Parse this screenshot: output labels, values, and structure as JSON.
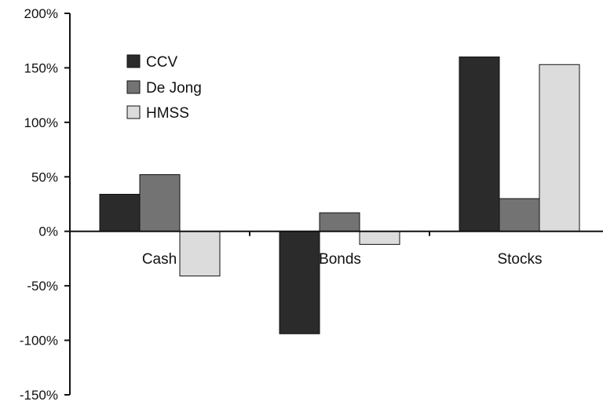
{
  "chart_data": {
    "type": "bar",
    "categories": [
      "Cash",
      "Bonds",
      "Stocks"
    ],
    "series": [
      {
        "name": "CCV",
        "values": [
          34,
          -94,
          160
        ],
        "color": "#2b2b2b"
      },
      {
        "name": "De Jong",
        "values": [
          52,
          17,
          30
        ],
        "color": "#737373"
      },
      {
        "name": "HMSS",
        "values": [
          -41,
          -12,
          153
        ],
        "color": "#dcdcdc"
      }
    ],
    "yticks": [
      200,
      150,
      100,
      50,
      0,
      -50,
      -100,
      -150
    ],
    "ytick_labels": [
      "200%",
      "150%",
      "100%",
      "50%",
      "0%",
      "-50%",
      "-100%",
      "-150%"
    ],
    "ylim": [
      -150,
      200
    ],
    "legend_position": "top-left",
    "grid": false,
    "title": "",
    "xlabel": "",
    "ylabel": ""
  }
}
